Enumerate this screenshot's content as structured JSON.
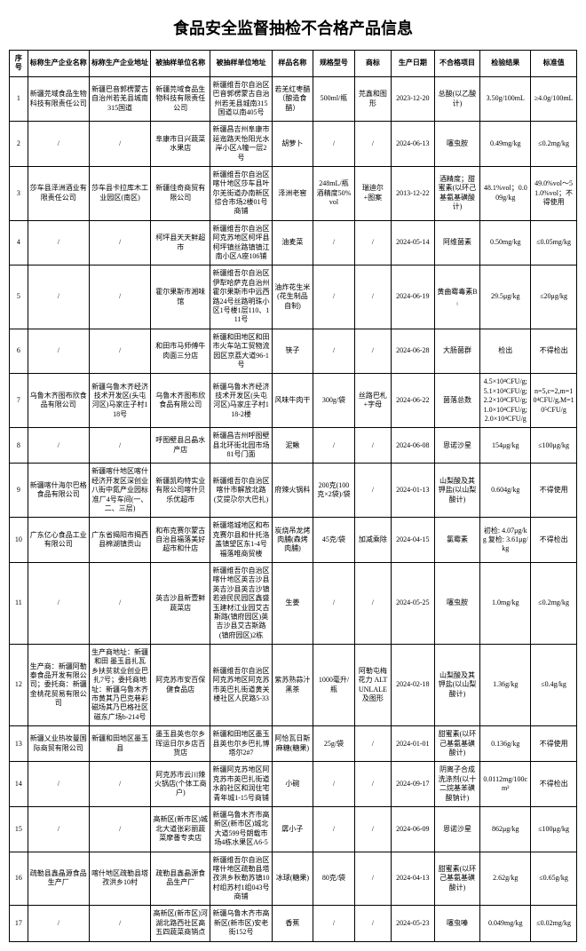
{
  "title": "食品安全监督抽检不合格产品信息",
  "columns": [
    "序号",
    "标称生产企业名称",
    "标称生产企业地址",
    "被抽样单位名称",
    "被抽样单位地址",
    "样品名称",
    "规格型号",
    "商标",
    "生产日期",
    "不合格项目",
    "检验结果",
    "标准值"
  ],
  "rows": [
    [
      "1",
      "新疆芫域食品生物科技有限责任公司",
      "新疆巴音郭楞蒙古自治州若羌县城南315国道",
      "新疆芫域食品生物科技有限责任公司",
      "新疆维吾尔自治区巴音郭楞蒙古自治州若羌县城南315国道以南405号",
      "若羌红枣醋（酿造食醋）",
      "500ml/瓶",
      "芫鑫和图形",
      "2023-12-20",
      "总酸(以乙酸计)",
      "3.50g/100mL",
      "≥4.0g/100mL"
    ],
    [
      "2",
      "/",
      "/",
      "阜康市日兴蔬菜水果店",
      "新疆昌吉州阜康市延迤路天怡阳光水岸小区A幢一层2号",
      "胡萝卜",
      "/",
      "/",
      "2024-06-13",
      "噻虫胺",
      "0.49mg/kg",
      "≤0.2mg/kg"
    ],
    [
      "3",
      "莎车县泽洲酒业有限责任公司",
      "莎车县卡拉库木工业园区(南区)",
      "新疆佳奇商贸有限公司",
      "新疆维吾尔自治区喀什地区莎车县叶尔羌街道办南新区综合市场2楼01号商铺",
      "泽洲老窖",
      "248mL/瓶 酒精度50%vol",
      "瑞迪尔+图案",
      "2013-12-22",
      "酒精度；甜蜜素(以环己基氨基磺酸计)",
      "48.1%vol；0.009g/kg",
      "49.0%vol～51.0%vol；不得使用"
    ],
    [
      "4",
      "/",
      "/",
      "柯坪县天天鲜超市",
      "新疆维吾尔自治区阿克苏地区柯坪县柯坪镇丝路镇镇江南小区A座106铺",
      "油麦菜",
      "/",
      "/",
      "2024-05-14",
      "阿维菌素",
      "0.50mg/kg",
      "≤0.05mg/kg"
    ],
    [
      "5",
      "/",
      "/",
      "霍尔果斯市湘味馆",
      "新疆维吾尔自治区伊犁哈萨克自治州霍尔果斯市中远西路24号丝路明珠小区1号楼1层110、111号",
      "油炸花生米(花生制品自制)",
      "/",
      "/",
      "2024-06-19",
      "黄曲霉毒素B₁",
      "29.5μg/kg",
      "≤20μg/kg"
    ],
    [
      "6",
      "/",
      "/",
      "和田市马师傅牛肉面三分店",
      "新疆和田地区和田市火车站工贸物流园区京荔大道96-1号",
      "筷子",
      "/",
      "/",
      "2024-06-28",
      "大肠菌群",
      "检出",
      "不得检出"
    ],
    [
      "7",
      "乌鲁木齐图布欣食品有限公司",
      "新疆乌鲁木齐经济技术开发区(头屯河区)马家庄子村118号",
      "乌鲁木齐图布欣食品有限公司",
      "新疆乌鲁木齐经济技术开发区(头屯河区)马家庄子村118-2楼",
      "风味牛肉干",
      "300g/袋",
      "丝路巴札+字母",
      "2024-06-22",
      "菌落总数",
      "4.5×10⁴CFU/g;5.1×10⁴CFU/g;2.2×10⁴CFU/g;1.0×10⁴CFU/g;2.0×10⁴CFU/g",
      "n=5,c=2,m=10⁴CFU/g,M=10⁵CFU/g"
    ],
    [
      "8",
      "/",
      "/",
      "呼图壁县吕晶水产店",
      "新疆昌吉州呼图壁县北环街北园市场81号门面",
      "泥鳅",
      "/",
      "/",
      "2024-06-08",
      "恩诺沙星",
      "154μg/kg",
      "≤100μg/kg"
    ],
    [
      "9",
      "新疆喀什海尔巴格食品有限公司",
      "新疆喀什地区喀什经济开发区深创业八街中氮产业园标准厂4号车间(一、二、三层)",
      "新疆凯昀特实业有限公司喀什贝乐优超市",
      "新疆维吾尔自治区喀什市解放北路(艾提尕尔大巴扎)",
      "府辣火锅料",
      "200克(100克×2袋)/袋",
      "/",
      "2024-01-13",
      "山梨酸及其钾盐(以山梨酸计)",
      "0.604g/kg",
      "不得使用"
    ],
    [
      "10",
      "广东亿心食品工业有限公司",
      "广东省揭阳市揭西县棉湖镇贡山",
      "和布克赛尔蒙古自治县福落美好超市和什店",
      "新疆塔城地区和布克赛尔县和什托洛盖镇望区东1-4号福落唯商贸楼",
      "炭烧吊龙烤肉脯(森烤肉脯)",
      "45克/袋",
      "加减乘除",
      "2024-04-15",
      "氯霉素",
      "初检: 4.07μg/kg 复检: 3.61μg/kg",
      "不得检出"
    ],
    [
      "11",
      "/",
      "/",
      "英吉沙县新壹鲜蔬菜店",
      "新疆维吾尔自治区喀什地区英吉沙县英吉沙县英吉沙镇若迪民民园区鑫盛玉建材江业园艾古斯路(镇府园区)英吉沙县艾古斯路(镇府园区)2栋",
      "生姜",
      "/",
      "/",
      "2024-05-25",
      "噻虫胺",
      "1.0mg/kg",
      "≤0.2mg/kg"
    ],
    [
      "12",
      "生产商：新疆阿勒泰食品开发有限公司；委托商：新疆金桃花贸易有限公司",
      "生产商地址：新疆和田 墨玉县扎瓦乡扶贫就业创业巴扎7号；委托商地址：新疆乌鲁木齐市黄其乃巴克巷彩磁场其乃巴格社区磁东广场b-214号",
      "阿克苏市安百保健食品店",
      "新疆维吾尔自治区阿克苏地区阿克苏市英巴扎街道黄关楼社区人民路5-33",
      "紫苏熟蒜汁黑茶",
      "1000毫升/瓶",
      "阿勒屯梅花力 ALTUNLALE及图形",
      "2024-02-18",
      "山梨酸及其钾盐(以山梨酸计)",
      "1.36g/kg",
      "≤0.4g/kg"
    ],
    [
      "13",
      "新疆乂业热妆曼国际商贸有限公司",
      "新疆和田地区墨玉县",
      "墨玉县英也尔乡珲运日尔乡店百货店",
      "新疆和田地区墨玉县英也尔乡巴扎博塔尔2#7",
      "阿恰瓦日斯麻糖(糖果)",
      "25g/袋",
      "/",
      "2024-01-01",
      "甜蜜素(以环己基氨基磺酸计)",
      "0.136g/kg",
      "不得使用"
    ],
    [
      "14",
      "/",
      "/",
      "阿克苏市云川辣火锅店(个体工商户)",
      "新疆阿克苏地区阿克苏市英巴扎街道水韵社区和润住宅青年城1-15号商铺",
      "小碗",
      "/",
      "/",
      "2024-09-17",
      "阴离子合成洗涤剂(以十二烷基苯磺酸钠计)",
      "0.0112mg/100cm²",
      "不得检出"
    ],
    [
      "15",
      "/",
      "/",
      "高新区(新市区)城北大道张彩丽蔬菜摩番专卖店",
      "新疆乌鲁木齐市高新区(新市区)城北大道599号朗载市场4栋水果区A6-5",
      "孱小子",
      "/",
      "/",
      "2024-06-09",
      "恩诺沙星",
      "862μg/kg",
      "≤100μg/kg"
    ],
    [
      "16",
      "疏勒县鑫晶源食品生产厂",
      "喀什地区疏勒县塔孜洪乡10村",
      "疏勒县鑫晶源食品生产厂",
      "新疆维吾尔自治区喀什地区疏勒县塔孜洪乡秋勒苏镇10村组苏村1组043号商铺",
      "冰球(糖果)",
      "80克/袋",
      "/",
      "2024-04-13",
      "甜蜜素(以环己基氨基磺酸计)",
      "2.62g/kg",
      "≤0.65g/kg"
    ],
    [
      "17",
      "/",
      "/",
      "高新区(新市区)河湖北路西社区高五四蔬菜商销点",
      "新疆乌鲁木齐市高新区(新市区)安老街152号",
      "香蕉",
      "/",
      "/",
      "2024-05-23",
      "噻虫嗪",
      "0.049mg/kg",
      "≤0.02mg/kg"
    ]
  ]
}
